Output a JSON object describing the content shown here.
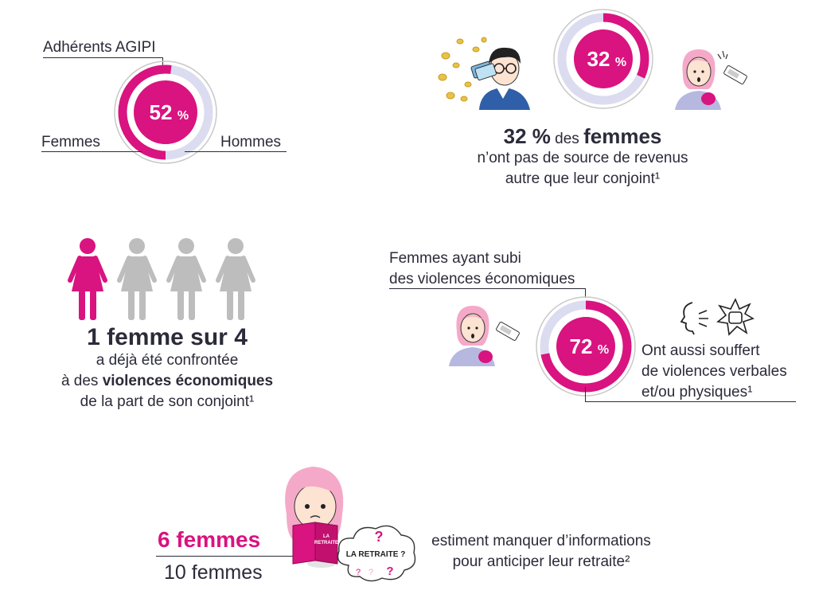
{
  "members": {
    "title": "Adhérents AGIPI",
    "value": 52,
    "value_text": "52",
    "pct_sign": "%",
    "label_women": "Femmes",
    "label_men": "Hommes"
  },
  "income": {
    "value": 32,
    "value_text": "32",
    "pct_sign": "%",
    "headline_number": "32 %",
    "headline_mid": " des ",
    "headline_bold": "femmes",
    "line2": "n’ont pas de source de revenus",
    "line3": "autre que leur conjoint¹"
  },
  "ratio": {
    "highlighted": 1,
    "total": 4,
    "headline": "1 femme sur 4",
    "line2": "a déjà été confrontée",
    "line3_prefix": "à des ",
    "line3_bold": "violences économiques",
    "line4": "de la part de son conjoint¹"
  },
  "violence": {
    "caption_line1": "Femmes ayant subi",
    "caption_line2": "des violences économiques",
    "value": 72,
    "value_text": "72",
    "pct_sign": "%",
    "desc_line1": "Ont aussi souffert",
    "desc_line2": "de violences verbales",
    "desc_line3": "et/ou physiques¹"
  },
  "retirement": {
    "numerator": "6 femmes",
    "denominator": "10 femmes",
    "book_line1": "LA",
    "book_line2": "RETRAITE",
    "bubble_text": "LA RETRAITE ?",
    "desc_line1": "estiment manquer d’informations",
    "desc_line2": "pour anticiper leur retraite²"
  },
  "colors": {
    "magenta": "#d9137f",
    "lavender": "#dcdcf0",
    "grey_figure": "#bdbdbd",
    "text": "#2b2b3a",
    "hair_pink": "#f5a9c8"
  },
  "icons": [
    "coins-icon",
    "man-with-cards-icon",
    "worried-woman-icon",
    "empty-wallet-icon",
    "woman-figure-icon",
    "shouting-face-icon",
    "hit-icon",
    "reading-girl-icon",
    "question-cloud-icon"
  ]
}
